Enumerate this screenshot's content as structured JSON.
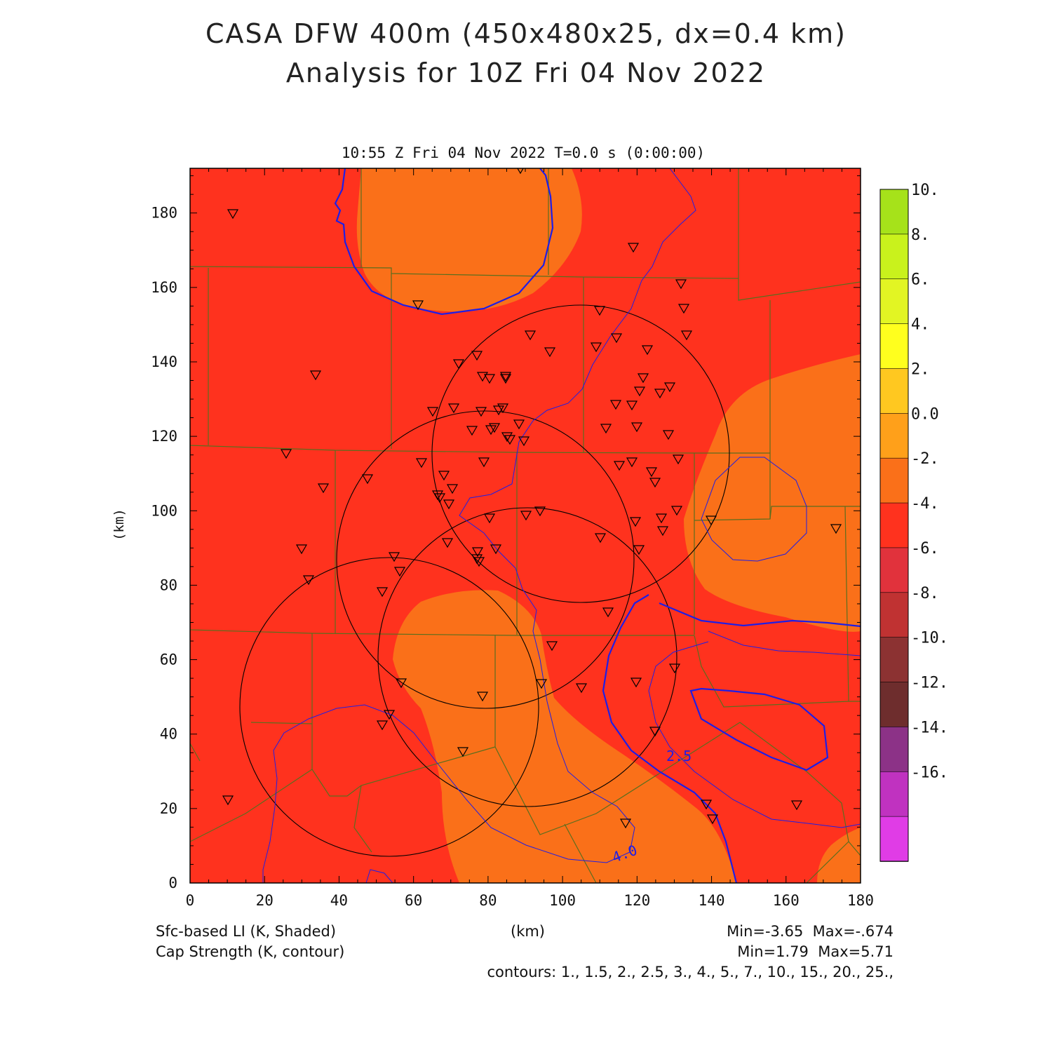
{
  "title_line1": "CASA DFW 400m (450x480x25, dx=0.4 km)",
  "title_line2": "Analysis for 10Z Fri 04 Nov 2022",
  "subtitle": "10:55 Z Fri 04 Nov 2022    T=0.0 s (0:00:00)",
  "axes": {
    "xlabel": "(km)",
    "ylabel": "(km)",
    "x_ticks": [
      "0",
      "20",
      "40",
      "60",
      "80",
      "100",
      "120",
      "140",
      "160",
      "180"
    ],
    "y_ticks": [
      "0",
      "20",
      "40",
      "60",
      "80",
      "100",
      "120",
      "140",
      "160",
      "180"
    ],
    "xlim": [
      0,
      180
    ],
    "ylim": [
      0,
      192
    ]
  },
  "colorbar": {
    "labels": [
      "10.",
      "8.",
      "6.",
      "4.",
      "2.",
      "0.0",
      "-2.",
      "-4.",
      "-6.",
      "-8.",
      "-10.",
      "-12.",
      "-14.",
      "-16."
    ],
    "colors": [
      "#a6e21a",
      "#c9f21c",
      "#e2f523",
      "#ffff1e",
      "#ffc820",
      "#ffa01a",
      "#fa7019",
      "#ff321e",
      "#e1323c",
      "#c03232",
      "#8c3232",
      "#6e2d2d",
      "#8c3287",
      "#c032c0",
      "#e03ce6"
    ]
  },
  "contour_label_25": "2.5",
  "contour_label_40": "4.0",
  "footer": {
    "field1": "Sfc-based LI (K, Shaded)",
    "field2": "Cap Strength (K, contour)",
    "xunit": "(km)",
    "stats1": "Min=-3.65  Max=-.674",
    "stats2": "Min=1.79  Max=5.71",
    "contours": "contours: 1., 1.5, 2., 2.5, 3., 4., 5., 7., 10., 15., 20., 25.,"
  },
  "colors": {
    "li_-4_to_-2": "#ff321e",
    "li_-2_to_0": "#fa7019",
    "county_lines": "#5a6e1e",
    "contours": "#1e1ee6"
  }
}
